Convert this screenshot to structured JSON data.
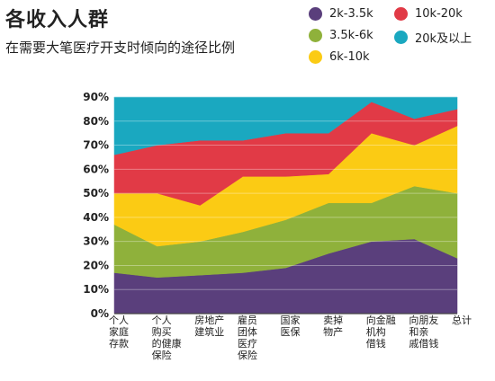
{
  "title": "各收入人群",
  "subtitle": "在需要大笔医疗开支时倾向的途径比例",
  "legend": [
    {
      "label": "2k-3.5k",
      "color": "#5a3f7c"
    },
    {
      "label": "10k-20k",
      "color": "#e13a46"
    },
    {
      "label": "3.5k-6k",
      "color": "#8fb13b"
    },
    {
      "label": "20k及以上",
      "color": "#1aa8c0"
    },
    {
      "label": "6k-10k",
      "color": "#fbcb14"
    }
  ],
  "chart_data": {
    "type": "area",
    "stacked": true,
    "title": "各收入人群",
    "subtitle": "在需要大笔医疗开支时倾向的途径比例",
    "categories": [
      "个人家庭存款",
      "个人购买的健康保险",
      "房地产建筑业",
      "雇员团体医疗保险",
      "国家医保",
      "卖掉物产",
      "向金融机构借钱",
      "向朋友和亲戚借钱",
      "总计"
    ],
    "category_lines": [
      [
        "个人",
        "家庭",
        "存款"
      ],
      [
        "个人",
        "购买",
        "的健康",
        "保险"
      ],
      [
        "房地产",
        "建筑业"
      ],
      [
        "雇员",
        "团体",
        "医疗",
        "保险"
      ],
      [
        "国家",
        "医保"
      ],
      [
        "卖掉",
        "物产"
      ],
      [
        "向金融",
        "机构",
        "借钱"
      ],
      [
        "向朋友",
        "和亲",
        "戚借钱"
      ],
      [
        "总计"
      ]
    ],
    "ylim": [
      0,
      90
    ],
    "yticks": [
      "0%",
      "10%",
      "20%",
      "30%",
      "40%",
      "50%",
      "60%",
      "70%",
      "80%",
      "90%"
    ],
    "series": [
      {
        "name": "2k-3.5k",
        "color": "#5a3f7c",
        "values": [
          17,
          15,
          16,
          17,
          19,
          25,
          30,
          31,
          23
        ]
      },
      {
        "name": "3.5k-6k",
        "color": "#8fb13b",
        "values": [
          20,
          13,
          14,
          17,
          20,
          21,
          16,
          22,
          27
        ]
      },
      {
        "name": "6k-10k",
        "color": "#fbcb14",
        "values": [
          13,
          22,
          15,
          23,
          18,
          12,
          29,
          17,
          28
        ]
      },
      {
        "name": "10k-20k",
        "color": "#e13a46",
        "values": [
          16,
          20,
          27,
          15,
          18,
          17,
          13,
          11,
          7
        ]
      },
      {
        "name": "20k及以上",
        "color": "#1aa8c0",
        "values": [
          24,
          20,
          18,
          18,
          15,
          15,
          2,
          9,
          5
        ]
      }
    ]
  }
}
